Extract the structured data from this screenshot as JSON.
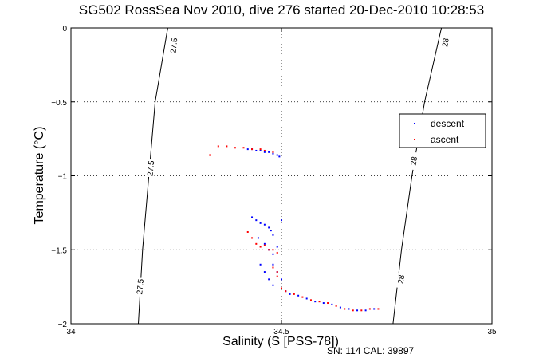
{
  "chart_data": {
    "type": "scatter",
    "title": "SG502 RossSea Nov 2010, dive 276 started 20-Dec-2010 10:28:53",
    "xlabel": "Salinity (S [PSS-78])",
    "ylabel": "Temperature (°C)",
    "xlim": [
      34,
      35
    ],
    "ylim": [
      -2,
      0
    ],
    "xticks": [
      34,
      34.5,
      35
    ],
    "xtick_labels": [
      "34",
      "34.5",
      "35"
    ],
    "yticks": [
      0,
      -0.5,
      -1,
      -1.5,
      -2
    ],
    "ytick_labels": [
      "0",
      "−0.5",
      "−1",
      "−1.5",
      "−2"
    ],
    "grid": true,
    "legend_position": "right",
    "info_text": "SN: 114  CAL: 39897",
    "isopycnals": [
      {
        "label": "27.5",
        "points": [
          [
            34.23,
            0.0
          ],
          [
            34.2,
            -0.5
          ],
          [
            34.185,
            -1.0
          ],
          [
            34.17,
            -1.5
          ],
          [
            34.16,
            -2.0
          ]
        ],
        "label_positions": [
          [
            34.245,
            -0.12
          ],
          [
            34.19,
            -0.95
          ],
          [
            34.165,
            -1.75
          ]
        ]
      },
      {
        "label": "28",
        "points": [
          [
            34.88,
            0.0
          ],
          [
            34.84,
            -0.5
          ],
          [
            34.81,
            -1.0
          ],
          [
            34.785,
            -1.5
          ],
          [
            34.765,
            -2.0
          ]
        ],
        "label_positions": [
          [
            34.89,
            -0.1
          ],
          [
            34.815,
            -0.9
          ],
          [
            34.785,
            -1.7
          ]
        ]
      }
    ],
    "series": [
      {
        "name": "descent",
        "color": "#0000ff",
        "points": [
          [
            34.42,
            -0.82
          ],
          [
            34.43,
            -0.82
          ],
          [
            34.44,
            -0.83
          ],
          [
            34.45,
            -0.83
          ],
          [
            34.46,
            -0.84
          ],
          [
            34.47,
            -0.84
          ],
          [
            34.48,
            -0.85
          ],
          [
            34.49,
            -0.86
          ],
          [
            34.495,
            -0.87
          ],
          [
            34.43,
            -1.28
          ],
          [
            34.44,
            -1.3
          ],
          [
            34.45,
            -1.32
          ],
          [
            34.46,
            -1.33
          ],
          [
            34.47,
            -1.35
          ],
          [
            34.475,
            -1.37
          ],
          [
            34.48,
            -1.4
          ],
          [
            34.445,
            -1.42
          ],
          [
            34.46,
            -1.46
          ],
          [
            34.47,
            -1.5
          ],
          [
            34.48,
            -1.53
          ],
          [
            34.49,
            -1.48
          ],
          [
            34.48,
            -1.6
          ],
          [
            34.49,
            -1.65
          ],
          [
            34.5,
            -1.7
          ],
          [
            34.5,
            -1.3
          ],
          [
            34.45,
            -1.6
          ],
          [
            34.46,
            -1.65
          ],
          [
            34.47,
            -1.7
          ],
          [
            34.48,
            -1.74
          ],
          [
            34.5,
            -1.76
          ],
          [
            34.51,
            -1.78
          ],
          [
            34.52,
            -1.8
          ],
          [
            34.54,
            -1.81
          ],
          [
            34.56,
            -1.83
          ],
          [
            34.58,
            -1.85
          ],
          [
            34.6,
            -1.86
          ],
          [
            34.62,
            -1.87
          ],
          [
            34.64,
            -1.89
          ],
          [
            34.66,
            -1.9
          ],
          [
            34.68,
            -1.91
          ],
          [
            34.7,
            -1.91
          ],
          [
            34.72,
            -1.9
          ]
        ]
      },
      {
        "name": "ascent",
        "color": "#ff0000",
        "points": [
          [
            34.33,
            -0.86
          ],
          [
            34.35,
            -0.8
          ],
          [
            34.37,
            -0.8
          ],
          [
            34.39,
            -0.81
          ],
          [
            34.41,
            -0.81
          ],
          [
            34.43,
            -0.82
          ],
          [
            34.45,
            -0.82
          ],
          [
            34.46,
            -0.83
          ],
          [
            34.48,
            -0.84
          ],
          [
            34.42,
            -1.38
          ],
          [
            34.43,
            -1.42
          ],
          [
            34.44,
            -1.46
          ],
          [
            34.45,
            -1.48
          ],
          [
            34.46,
            -1.47
          ],
          [
            34.47,
            -1.5
          ],
          [
            34.48,
            -1.5
          ],
          [
            34.49,
            -1.52
          ],
          [
            34.48,
            -1.62
          ],
          [
            34.49,
            -1.65
          ],
          [
            34.49,
            -1.68
          ],
          [
            34.5,
            -1.76
          ],
          [
            34.51,
            -1.78
          ],
          [
            34.53,
            -1.8
          ],
          [
            34.55,
            -1.82
          ],
          [
            34.57,
            -1.84
          ],
          [
            34.59,
            -1.85
          ],
          [
            34.61,
            -1.86
          ],
          [
            34.63,
            -1.88
          ],
          [
            34.65,
            -1.9
          ],
          [
            34.67,
            -1.91
          ],
          [
            34.69,
            -1.91
          ],
          [
            34.71,
            -1.9
          ],
          [
            34.73,
            -1.9
          ]
        ]
      }
    ]
  }
}
